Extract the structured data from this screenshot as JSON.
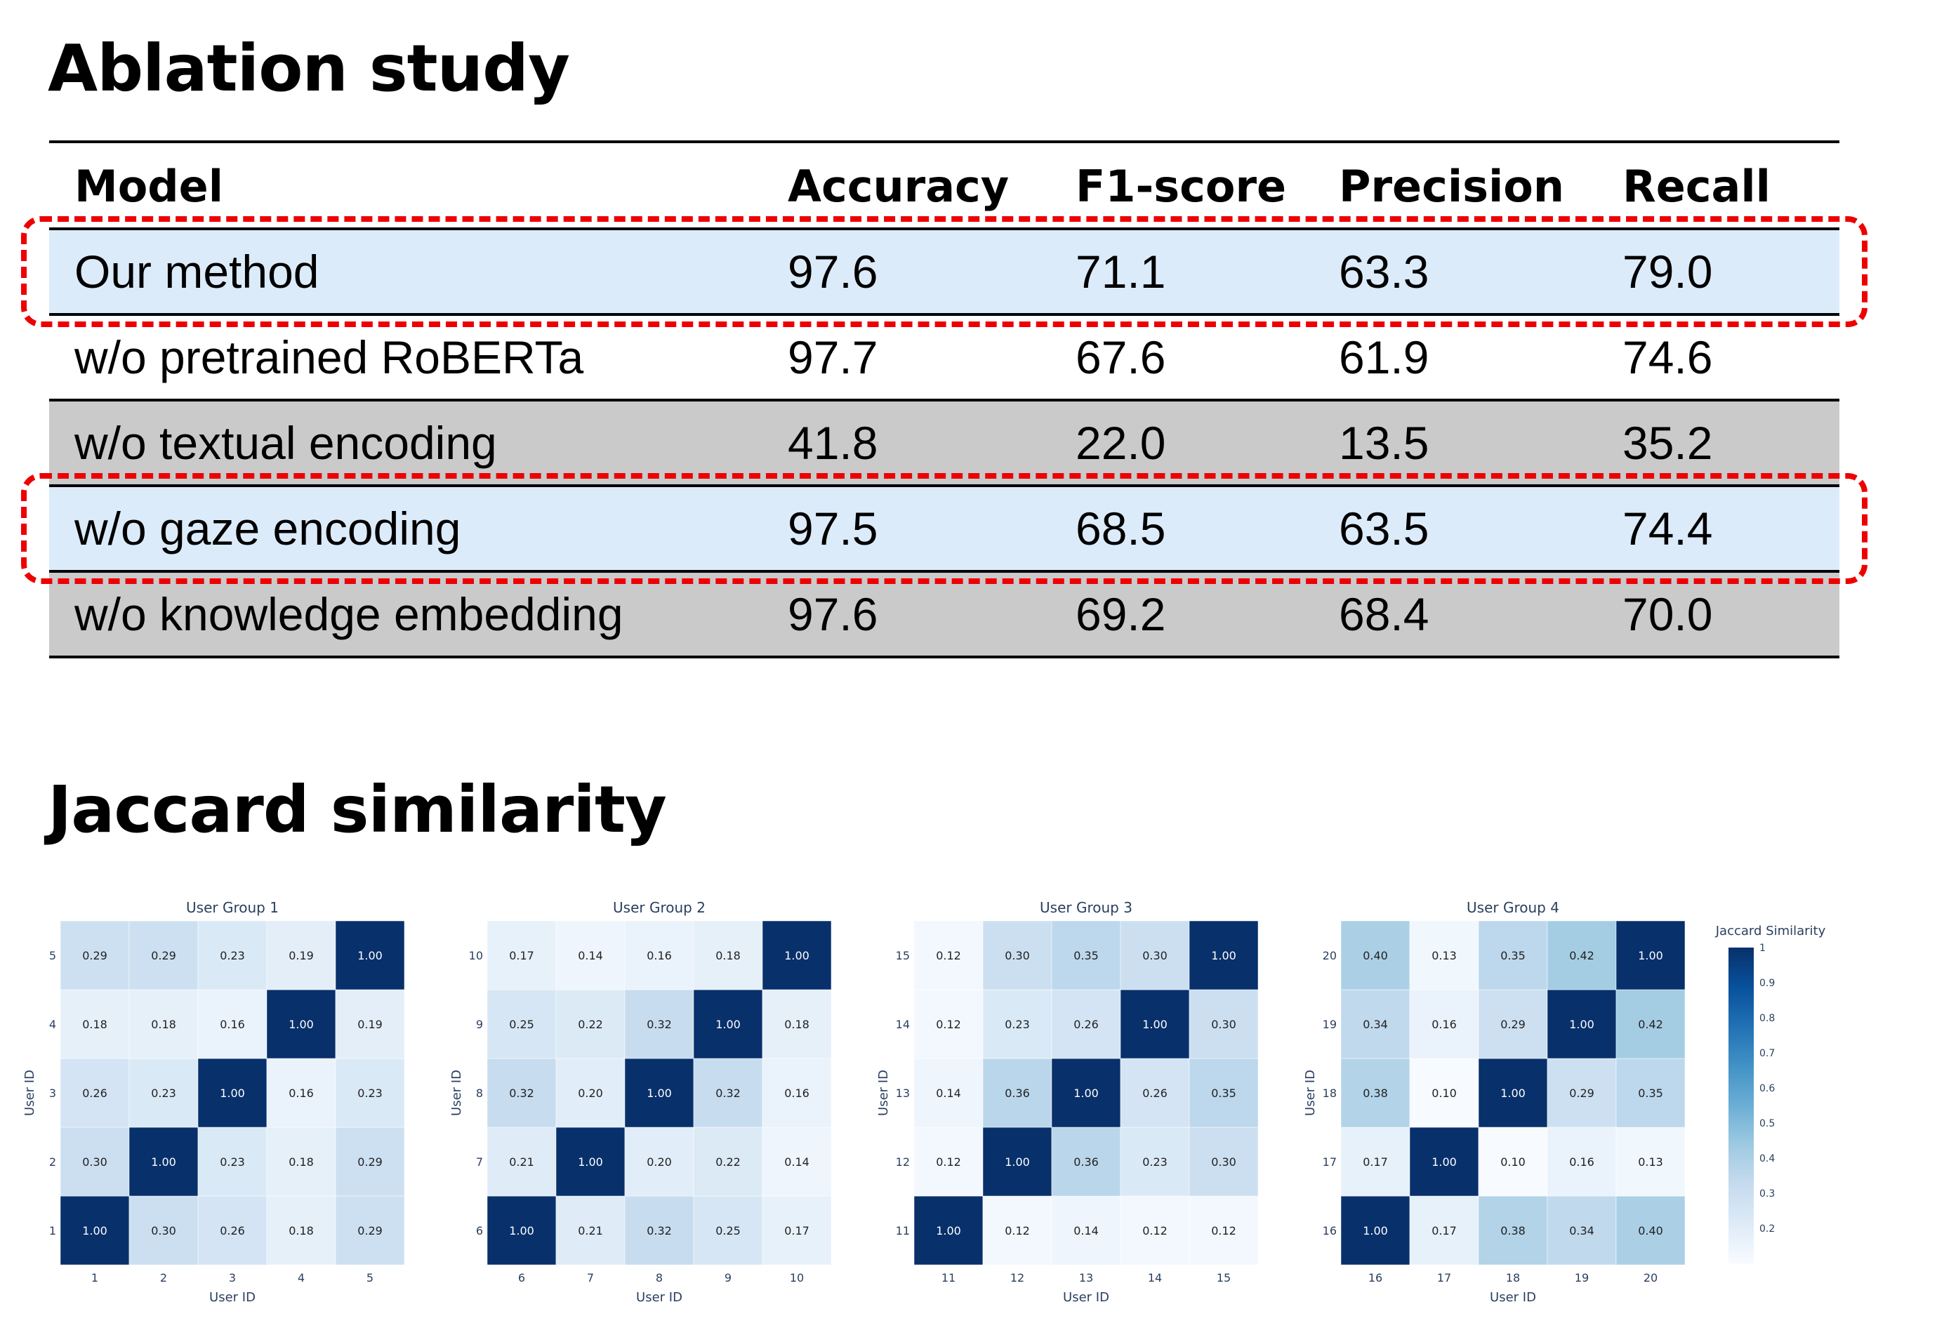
{
  "titles": {
    "ablation": "Ablation study",
    "jaccard": "Jaccard similarity"
  },
  "ablation_table": {
    "columns": [
      "Model",
      "Accuracy",
      "F1-score",
      "Precision",
      "Recall"
    ],
    "rows": [
      {
        "model": "Our method",
        "accuracy": "97.6",
        "f1": "71.1",
        "precision": "63.3",
        "recall": "79.0",
        "style": "light"
      },
      {
        "model": "w/o pretrained RoBERTa",
        "accuracy": "97.7",
        "f1": "67.6",
        "precision": "61.9",
        "recall": "74.6",
        "style": "white"
      },
      {
        "model": "w/o textual encoding",
        "accuracy": "41.8",
        "f1": "22.0",
        "precision": "13.5",
        "recall": "35.2",
        "style": "gray"
      },
      {
        "model": "w/o gaze encoding",
        "accuracy": "97.5",
        "f1": "68.5",
        "precision": "63.5",
        "recall": "74.4",
        "style": "light"
      },
      {
        "model": "w/o knowledge embedding",
        "accuracy": "97.6",
        "f1": "69.2",
        "precision": "68.4",
        "recall": "70.0",
        "style": "gray"
      }
    ],
    "highlighted_rows": [
      0,
      3
    ],
    "highlight_color": "#ee0000"
  },
  "chart_data": [
    {
      "type": "heatmap",
      "title": "User Group 1",
      "xlabel": "User ID",
      "ylabel": "User ID",
      "x": [
        "1",
        "2",
        "3",
        "4",
        "5"
      ],
      "y": [
        "1",
        "2",
        "3",
        "4",
        "5"
      ],
      "z": [
        [
          1.0,
          0.3,
          0.26,
          0.18,
          0.29
        ],
        [
          0.3,
          1.0,
          0.23,
          0.18,
          0.29
        ],
        [
          0.26,
          0.23,
          1.0,
          0.16,
          0.23
        ],
        [
          0.18,
          0.18,
          0.16,
          1.0,
          0.19
        ],
        [
          0.29,
          0.29,
          0.23,
          0.19,
          1.0
        ]
      ]
    },
    {
      "type": "heatmap",
      "title": "User Group 2",
      "xlabel": "User ID",
      "ylabel": "User ID",
      "x": [
        "6",
        "7",
        "8",
        "9",
        "10"
      ],
      "y": [
        "6",
        "7",
        "8",
        "9",
        "10"
      ],
      "z": [
        [
          1.0,
          0.21,
          0.32,
          0.25,
          0.17
        ],
        [
          0.21,
          1.0,
          0.2,
          0.22,
          0.14
        ],
        [
          0.32,
          0.2,
          1.0,
          0.32,
          0.16
        ],
        [
          0.25,
          0.22,
          0.32,
          1.0,
          0.18
        ],
        [
          0.17,
          0.14,
          0.16,
          0.18,
          1.0
        ]
      ]
    },
    {
      "type": "heatmap",
      "title": "User Group 3",
      "xlabel": "User ID",
      "ylabel": "User ID",
      "x": [
        "11",
        "12",
        "13",
        "14",
        "15"
      ],
      "y": [
        "11",
        "12",
        "13",
        "14",
        "15"
      ],
      "z": [
        [
          1.0,
          0.12,
          0.14,
          0.12,
          0.12
        ],
        [
          0.12,
          1.0,
          0.36,
          0.23,
          0.3
        ],
        [
          0.14,
          0.36,
          1.0,
          0.26,
          0.35
        ],
        [
          0.12,
          0.23,
          0.26,
          1.0,
          0.3
        ],
        [
          0.12,
          0.3,
          0.35,
          0.3,
          1.0
        ]
      ]
    },
    {
      "type": "heatmap",
      "title": "User Group 4",
      "xlabel": "User ID",
      "ylabel": "User ID",
      "x": [
        "16",
        "17",
        "18",
        "19",
        "20"
      ],
      "y": [
        "16",
        "17",
        "18",
        "19",
        "20"
      ],
      "z": [
        [
          1.0,
          0.17,
          0.38,
          0.34,
          0.4
        ],
        [
          0.17,
          1.0,
          0.1,
          0.16,
          0.13
        ],
        [
          0.38,
          0.1,
          1.0,
          0.29,
          0.35
        ],
        [
          0.34,
          0.16,
          0.29,
          1.0,
          0.42
        ],
        [
          0.4,
          0.13,
          0.35,
          0.42,
          1.0
        ]
      ]
    }
  ],
  "colorbar": {
    "title": "Jaccard Similarity",
    "ticks": [
      "1",
      "0.9",
      "0.8",
      "0.7",
      "0.6",
      "0.5",
      "0.4",
      "0.3",
      "0.2"
    ],
    "tick_values": [
      1.0,
      0.9,
      0.8,
      0.7,
      0.6,
      0.5,
      0.4,
      0.3,
      0.2
    ],
    "range": [
      0.1,
      1.0
    ],
    "colorscale": [
      "#f7fbff",
      "#deebf7",
      "#c6dbef",
      "#9ecae1",
      "#6baed6",
      "#4292c6",
      "#2171b5",
      "#08519c",
      "#08306b"
    ]
  }
}
